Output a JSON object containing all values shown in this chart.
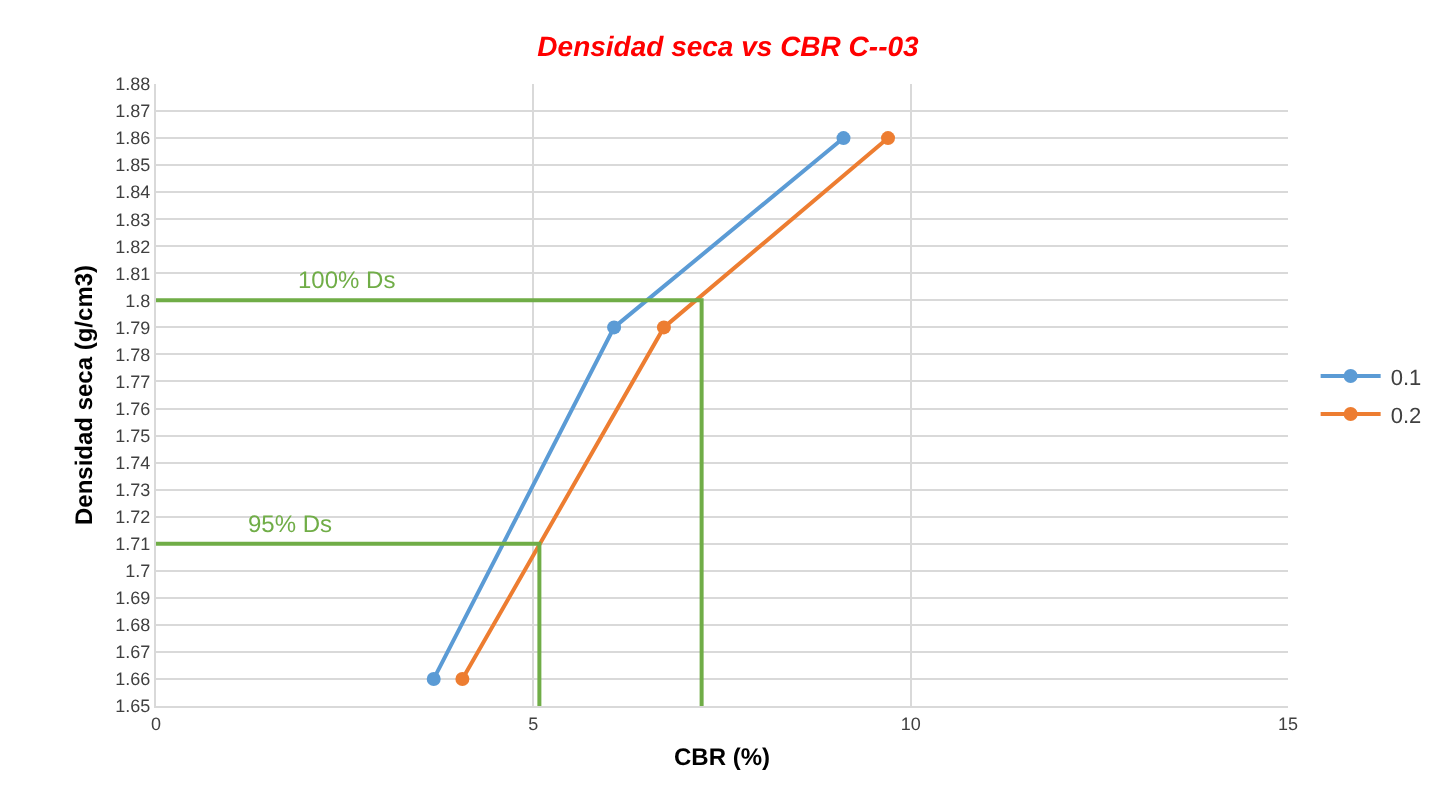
{
  "chart_data": {
    "type": "line",
    "title": "Densidad seca vs CBR C--03",
    "xlabel": "CBR (%)",
    "ylabel": "Densidad seca (g/cm3)",
    "series": [
      {
        "name": "0.1",
        "color": "#5b9bd5",
        "x": [
          3.68,
          6.07,
          9.11
        ],
        "values": [
          1.66,
          1.79,
          1.86
        ],
        "marker": "circle"
      },
      {
        "name": "0.2",
        "color": "#ed7d31",
        "x": [
          4.06,
          6.73,
          9.7
        ],
        "values": [
          1.66,
          1.79,
          1.86
        ],
        "marker": "circle"
      },
      {
        "name": "100% Ds",
        "color": "#70ad47",
        "x": [
          0,
          7.23,
          7.23
        ],
        "values": [
          1.8,
          1.8,
          1.65
        ],
        "marker": "none"
      },
      {
        "name": "95% Ds",
        "color": "#70ad47",
        "x": [
          0,
          5.08,
          5.08
        ],
        "values": [
          1.71,
          1.71,
          1.65
        ],
        "marker": "none"
      }
    ],
    "xlim": [
      0,
      15
    ],
    "xticks": [
      0,
      5,
      10,
      15
    ],
    "ylim": [
      1.65,
      1.88
    ],
    "yticks": [
      1.65,
      1.66,
      1.67,
      1.68,
      1.69,
      1.7,
      1.71,
      1.72,
      1.73,
      1.74,
      1.75,
      1.76,
      1.77,
      1.78,
      1.79,
      1.8,
      1.81,
      1.82,
      1.83,
      1.84,
      1.85,
      1.86,
      1.87,
      1.88
    ],
    "grid": true,
    "legend": "right",
    "line_style": "solid"
  }
}
